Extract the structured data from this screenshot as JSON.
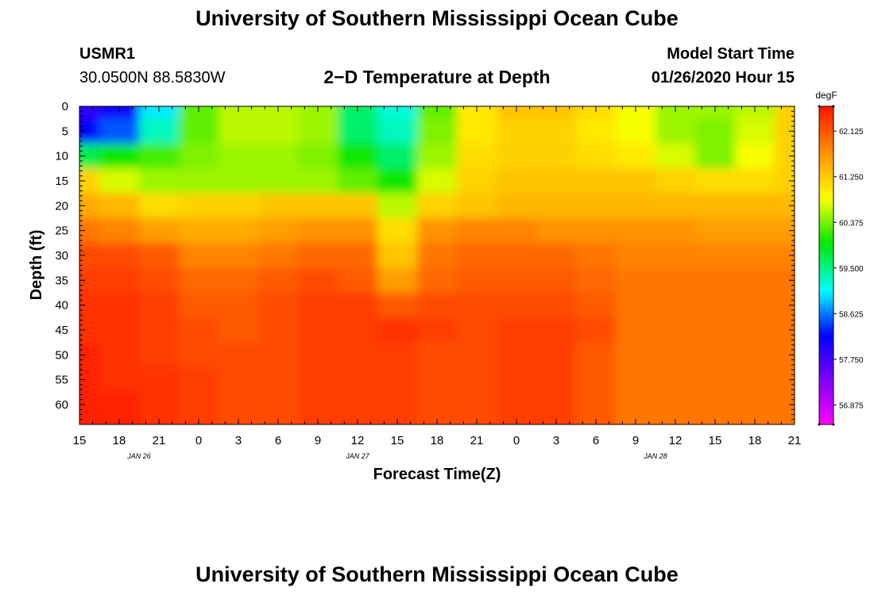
{
  "header": {
    "title": "University of Southern Mississippi Ocean Cube",
    "station_id": "USMR1",
    "coordinates": "30.0500N 88.5830W",
    "chart_title": "2−D Temperature at Depth",
    "model_start_label": "Model Start Time",
    "model_start_value": "01/26/2020 Hour 15"
  },
  "footer": {
    "title": "University of Southern Mississippi Ocean Cube"
  },
  "colors": {
    "background": "#ffffff",
    "scale_min": "#ff00ff",
    "scale_max": "#ff1a00"
  },
  "chart_data": {
    "type": "heatmap",
    "title": "2−D Temperature at Depth",
    "xlabel": "Forecast Time(Z)",
    "ylabel": "Depth (ft)",
    "x_tick_labels": [
      "15",
      "18",
      "21",
      "0",
      "3",
      "6",
      "9",
      "12",
      "15",
      "18",
      "21",
      "0",
      "3",
      "6",
      "9",
      "12",
      "15",
      "18",
      "21"
    ],
    "x_hours_from_start": [
      0,
      3,
      6,
      9,
      12,
      15,
      18,
      21,
      24,
      27,
      30,
      33,
      36,
      39,
      42,
      45,
      48,
      51,
      54
    ],
    "xlim": [
      0,
      54
    ],
    "date_labels": [
      {
        "label": "JAN  26",
        "hour": 4.5
      },
      {
        "label": "JAN  27",
        "hour": 21
      },
      {
        "label": "JAN  28",
        "hour": 43.5
      }
    ],
    "y_ticks": [
      0,
      5,
      10,
      15,
      20,
      25,
      30,
      35,
      40,
      45,
      50,
      55,
      60
    ],
    "ylim": [
      0,
      64
    ],
    "y_reversed": true,
    "colorbar": {
      "unit": "degF",
      "min": 56.5,
      "max": 62.6,
      "tick_labels": [
        "62.125",
        "61.250",
        "60.375",
        "59.500",
        "58.625",
        "57.750",
        "56.875"
      ],
      "tick_values": [
        62.125,
        61.25,
        60.375,
        59.5,
        58.625,
        57.75,
        56.875
      ]
    },
    "grid_x_hours": [
      0,
      3,
      6,
      9,
      12,
      15,
      18,
      21,
      24,
      27,
      30,
      33,
      36,
      39,
      42,
      45,
      48,
      51,
      54
    ],
    "grid_depths": [
      0,
      5,
      10,
      15,
      20,
      25,
      30,
      35,
      40,
      45,
      50,
      55,
      60,
      64
    ],
    "values": [
      [
        57.9,
        58.1,
        59.0,
        60.3,
        60.6,
        60.6,
        60.5,
        59.6,
        59.2,
        60.3,
        61.0,
        61.3,
        61.3,
        61.1,
        60.8,
        60.5,
        60.5,
        60.6,
        61.2
      ],
      [
        58.2,
        58.5,
        59.3,
        60.3,
        60.6,
        60.6,
        60.5,
        59.6,
        59.3,
        60.4,
        61.0,
        61.2,
        61.2,
        61.0,
        60.8,
        60.5,
        60.4,
        60.7,
        61.2
      ],
      [
        59.7,
        60.0,
        60.2,
        60.4,
        60.5,
        60.5,
        60.4,
        60.0,
        59.6,
        60.5,
        61.1,
        61.2,
        61.2,
        61.1,
        61.0,
        60.7,
        60.4,
        60.8,
        61.2
      ],
      [
        61.2,
        60.7,
        60.5,
        60.5,
        60.5,
        60.5,
        60.5,
        60.3,
        60.0,
        60.7,
        61.2,
        61.3,
        61.3,
        61.3,
        61.3,
        61.2,
        61.1,
        61.1,
        61.2
      ],
      [
        61.5,
        61.4,
        61.1,
        61.2,
        61.2,
        61.3,
        61.3,
        61.3,
        60.6,
        61.2,
        61.3,
        61.4,
        61.4,
        61.4,
        61.4,
        61.4,
        61.4,
        61.4,
        61.4
      ],
      [
        61.9,
        61.8,
        61.6,
        61.5,
        61.5,
        61.6,
        61.7,
        61.7,
        61.1,
        61.7,
        61.8,
        61.8,
        61.7,
        61.7,
        61.7,
        61.7,
        61.6,
        61.6,
        61.6
      ],
      [
        62.2,
        62.2,
        62.1,
        61.8,
        61.8,
        61.9,
        62.0,
        62.0,
        61.3,
        61.9,
        62.0,
        62.0,
        62.0,
        61.9,
        61.8,
        61.8,
        61.8,
        61.8,
        61.8
      ],
      [
        62.3,
        62.3,
        62.2,
        62.0,
        62.0,
        62.1,
        62.2,
        62.1,
        61.6,
        62.0,
        62.1,
        62.1,
        62.1,
        62.0,
        61.9,
        61.9,
        61.9,
        61.9,
        61.9
      ],
      [
        62.4,
        62.4,
        62.3,
        62.1,
        62.1,
        62.2,
        62.3,
        62.3,
        62.1,
        62.2,
        62.2,
        62.2,
        62.2,
        62.1,
        61.9,
        61.9,
        61.9,
        61.9,
        61.9
      ],
      [
        62.4,
        62.4,
        62.3,
        62.2,
        62.1,
        62.2,
        62.3,
        62.3,
        62.4,
        62.3,
        62.2,
        62.3,
        62.3,
        62.2,
        61.9,
        61.9,
        61.9,
        61.9,
        61.9
      ],
      [
        62.5,
        62.4,
        62.3,
        62.2,
        62.2,
        62.2,
        62.3,
        62.3,
        62.3,
        62.2,
        62.2,
        62.3,
        62.3,
        62.1,
        61.9,
        61.9,
        61.9,
        61.9,
        61.9
      ],
      [
        62.5,
        62.4,
        62.4,
        62.3,
        62.2,
        62.2,
        62.3,
        62.3,
        62.3,
        62.2,
        62.2,
        62.3,
        62.3,
        62.1,
        61.9,
        61.9,
        61.9,
        61.9,
        61.9
      ],
      [
        62.5,
        62.5,
        62.4,
        62.3,
        62.2,
        62.2,
        62.3,
        62.3,
        62.3,
        62.2,
        62.2,
        62.3,
        62.3,
        62.1,
        61.9,
        61.9,
        61.9,
        61.9,
        61.9
      ],
      [
        62.5,
        62.5,
        62.4,
        62.3,
        62.2,
        62.2,
        62.3,
        62.3,
        62.3,
        62.2,
        62.2,
        62.3,
        62.3,
        62.1,
        61.9,
        61.9,
        61.9,
        61.9,
        61.9
      ]
    ]
  }
}
